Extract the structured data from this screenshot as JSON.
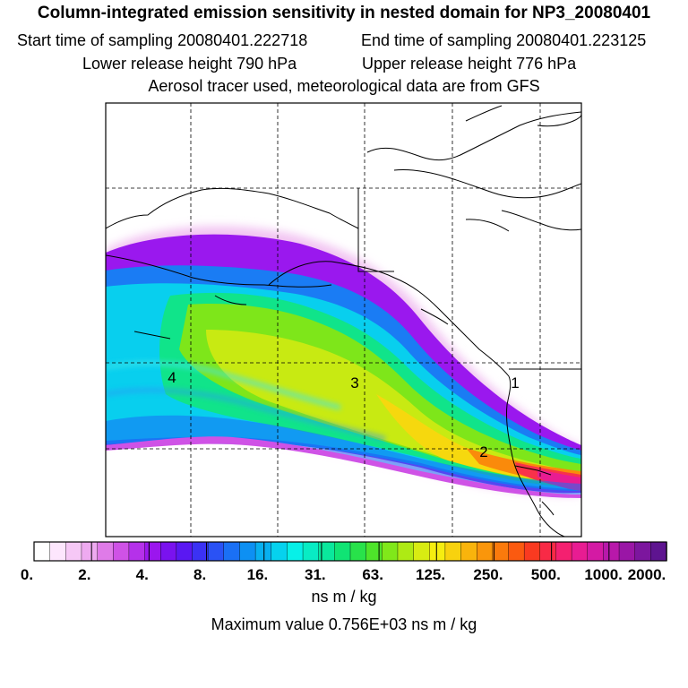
{
  "header": {
    "title": "Column-integrated emission sensitivity in nested domain for NP3_20080401",
    "start_time": "Start time of sampling 20080401.222718",
    "end_time": "End time of sampling 20080401.223125",
    "lower_height": "Lower release height  790 hPa",
    "upper_height": "Upper release height  776 hPa",
    "tracer_info": "Aerosol tracer used, meteorological data are from GFS"
  },
  "map": {
    "markers": [
      {
        "label": "4"
      },
      {
        "label": "3"
      },
      {
        "label": "2"
      },
      {
        "label": "1"
      }
    ]
  },
  "colorbar": {
    "tick_labels": [
      "0.",
      "2.",
      "4.",
      "8.",
      "16.",
      "31.",
      "63.",
      "125.",
      "250.",
      "500.",
      "1000.",
      "2000."
    ],
    "colors": [
      "#ffffff",
      "#fde6fd",
      "#f6c8f6",
      "#eeaaf0",
      "#df7be8",
      "#cf52e6",
      "#b531ea",
      "#9b16ee",
      "#7a12ef",
      "#5a18f2",
      "#3b32f4",
      "#2a52f5",
      "#1a70f5",
      "#0d90f3",
      "#08b0f0",
      "#06d2ee",
      "#07f0e8",
      "#08ecc4",
      "#0ae89c",
      "#10e474",
      "#28e24a",
      "#4ee42a",
      "#80e81a",
      "#aeea14",
      "#d8ec12",
      "#f6ee10",
      "#f8d20e",
      "#f9b40c",
      "#fa960b",
      "#fb7a0c",
      "#fb5a10",
      "#fa3a20",
      "#f82a46",
      "#f42070",
      "#e81c92",
      "#d41aa4",
      "#b818aa",
      "#9a16a6",
      "#7c169e",
      "#5e1490"
    ],
    "unit": "ns m / kg",
    "max_value": "Maximum value  0.756E+03 ns m / kg"
  }
}
